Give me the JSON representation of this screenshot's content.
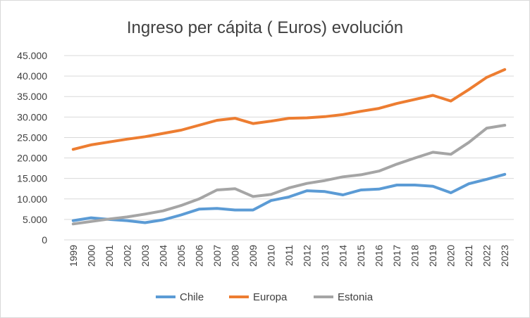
{
  "chart_data": {
    "type": "line",
    "title": "Ingreso per cápita ( Euros)  evolución",
    "xlabel": "",
    "ylabel": "",
    "ylim": [
      0,
      45000
    ],
    "y_ticks": [
      0,
      5000,
      10000,
      15000,
      20000,
      25000,
      30000,
      35000,
      40000,
      45000
    ],
    "y_tick_labels": [
      "0",
      "5.000",
      "10.000",
      "15.000",
      "20.000",
      "25.000",
      "30.000",
      "35.000",
      "40.000",
      "45.000"
    ],
    "grid": true,
    "legend_position": "bottom",
    "x": [
      "1999",
      "2000",
      "2001",
      "2002",
      "2003",
      "2004",
      "2005",
      "2006",
      "2007",
      "2008",
      "2009",
      "2010",
      "2011",
      "2012",
      "2013",
      "2014",
      "2015",
      "2016",
      "2017",
      "2018",
      "2019",
      "2020",
      "2021",
      "2022",
      "2023"
    ],
    "series": [
      {
        "name": "Chile",
        "color": "#5b9bd5",
        "values": [
          4700,
          5400,
          5000,
          4700,
          4200,
          4900,
          6100,
          7500,
          7700,
          7300,
          7300,
          9600,
          10500,
          12000,
          11800,
          11000,
          12200,
          12400,
          13400,
          13400,
          13100,
          11500,
          13700,
          14800,
          16000
        ]
      },
      {
        "name": "Europa",
        "color": "#ed7d31",
        "values": [
          22100,
          23200,
          23900,
          24600,
          25200,
          26000,
          26800,
          28000,
          29200,
          29700,
          28400,
          29000,
          29700,
          29800,
          30100,
          30600,
          31400,
          32100,
          33300,
          34300,
          35300,
          33900,
          36700,
          39700,
          41600
        ]
      },
      {
        "name": "Estonia",
        "color": "#a5a5a5",
        "values": [
          3900,
          4500,
          5100,
          5600,
          6300,
          7100,
          8400,
          10000,
          12200,
          12500,
          10600,
          11100,
          12700,
          13800,
          14500,
          15400,
          15900,
          16800,
          18500,
          20000,
          21400,
          20900,
          23800,
          27300,
          28000
        ]
      }
    ]
  }
}
